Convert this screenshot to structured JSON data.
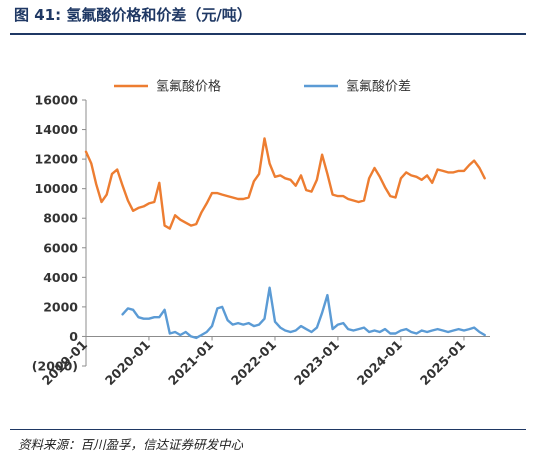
{
  "figure": {
    "title": "图 41:  氢氟酸价格和价差（元/吨）",
    "source": "资料来源：百川盈孚，信达证券研发中心"
  },
  "chart_data": {
    "type": "line",
    "title": "",
    "xlabel": "",
    "ylabel": "",
    "ylim": [
      -2000,
      16000
    ],
    "y_ticks": [
      "(2000)",
      "0",
      "2000",
      "4000",
      "6000",
      "8000",
      "10000",
      "12000",
      "14000",
      "16000"
    ],
    "x_ticks": [
      "2019-01",
      "2020-01",
      "2021-01",
      "2022-01",
      "2023-01",
      "2024-01",
      "2025-01"
    ],
    "grid": false,
    "legend_position": "top",
    "series": [
      {
        "name": "氢氟酸价格",
        "color": "#ed7d31",
        "x": [
          "2019-01",
          "2019-02",
          "2019-03",
          "2019-04",
          "2019-05",
          "2019-06",
          "2019-07",
          "2019-08",
          "2019-09",
          "2019-10",
          "2019-11",
          "2019-12",
          "2020-01",
          "2020-02",
          "2020-03",
          "2020-04",
          "2020-05",
          "2020-06",
          "2020-07",
          "2020-08",
          "2020-09",
          "2020-10",
          "2020-11",
          "2020-12",
          "2021-01",
          "2021-02",
          "2021-03",
          "2021-04",
          "2021-05",
          "2021-06",
          "2021-07",
          "2021-08",
          "2021-09",
          "2021-10",
          "2021-11",
          "2021-12",
          "2022-01",
          "2022-02",
          "2022-03",
          "2022-04",
          "2022-05",
          "2022-06",
          "2022-07",
          "2022-08",
          "2022-09",
          "2022-10",
          "2022-11",
          "2022-12",
          "2023-01",
          "2023-02",
          "2023-03",
          "2023-04",
          "2023-05",
          "2023-06",
          "2023-07",
          "2023-08",
          "2023-09",
          "2023-10",
          "2023-11",
          "2023-12",
          "2024-01",
          "2024-02",
          "2024-03",
          "2024-04",
          "2024-05",
          "2024-06",
          "2024-07",
          "2024-08",
          "2024-09",
          "2024-10",
          "2024-11",
          "2024-12",
          "2025-01",
          "2025-02",
          "2025-03",
          "2025-04",
          "2025-05"
        ],
        "values": [
          12500,
          11700,
          10300,
          9100,
          9600,
          11000,
          11300,
          10200,
          9200,
          8500,
          8700,
          8800,
          9000,
          9100,
          10400,
          7500,
          7300,
          8200,
          7900,
          7700,
          7500,
          7600,
          8400,
          9000,
          9700,
          9700,
          9600,
          9500,
          9400,
          9300,
          9300,
          9400,
          10500,
          11000,
          13400,
          11700,
          10800,
          10900,
          10700,
          10600,
          10200,
          10900,
          9900,
          9800,
          10600,
          12300,
          11000,
          9600,
          9500,
          9500,
          9300,
          9200,
          9100,
          9200,
          10700,
          11400,
          10800,
          10100,
          9500,
          9400,
          10700,
          11100,
          10900,
          10800,
          10600,
          10900,
          10400,
          11300,
          11200,
          11100,
          11100,
          11200,
          11200,
          11600,
          11900,
          11400,
          10700
        ]
      },
      {
        "name": "氢氟酸价差",
        "color": "#5b9bd5",
        "x": [
          "2019-08",
          "2019-09",
          "2019-10",
          "2019-11",
          "2019-12",
          "2020-01",
          "2020-02",
          "2020-03",
          "2020-04",
          "2020-05",
          "2020-06",
          "2020-07",
          "2020-08",
          "2020-09",
          "2020-10",
          "2020-11",
          "2020-12",
          "2021-01",
          "2021-02",
          "2021-03",
          "2021-04",
          "2021-05",
          "2021-06",
          "2021-07",
          "2021-08",
          "2021-09",
          "2021-10",
          "2021-11",
          "2021-12",
          "2022-01",
          "2022-02",
          "2022-03",
          "2022-04",
          "2022-05",
          "2022-06",
          "2022-07",
          "2022-08",
          "2022-09",
          "2022-10",
          "2022-11",
          "2022-12",
          "2023-01",
          "2023-02",
          "2023-03",
          "2023-04",
          "2023-05",
          "2023-06",
          "2023-07",
          "2023-08",
          "2023-09",
          "2023-10",
          "2023-11",
          "2023-12",
          "2024-01",
          "2024-02",
          "2024-03",
          "2024-04",
          "2024-05",
          "2024-06",
          "2024-07",
          "2024-08",
          "2024-09",
          "2024-10",
          "2024-11",
          "2024-12",
          "2025-01",
          "2025-02",
          "2025-03",
          "2025-04",
          "2025-05"
        ],
        "values": [
          1500,
          1900,
          1800,
          1300,
          1200,
          1200,
          1300,
          1300,
          1800,
          200,
          300,
          100,
          300,
          0,
          -100,
          100,
          300,
          700,
          1900,
          2000,
          1100,
          800,
          900,
          800,
          900,
          700,
          800,
          1200,
          3300,
          1000,
          600,
          400,
          300,
          400,
          700,
          500,
          300,
          600,
          1600,
          2800,
          500,
          800,
          900,
          500,
          400,
          500,
          600,
          300,
          400,
          300,
          500,
          200,
          200,
          400,
          500,
          300,
          200,
          400,
          300,
          400,
          500,
          400,
          300,
          400,
          500,
          400,
          500,
          600,
          300,
          100
        ]
      }
    ]
  }
}
